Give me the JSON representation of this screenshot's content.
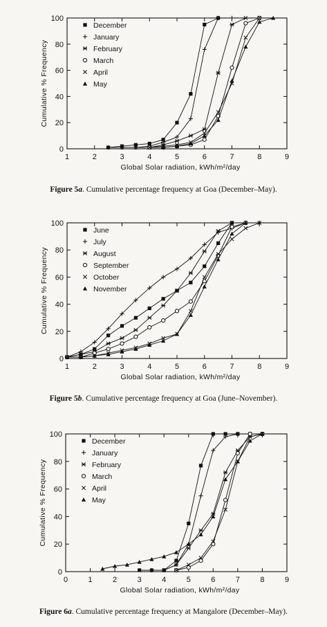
{
  "figures": [
    {
      "caption_prefix": "Figure 5",
      "caption_letter": "a",
      "caption_text": ". Cumulative percentage frequency at Goa (December–May).",
      "chart_data": {
        "type": "line",
        "title": "",
        "xlabel": "Global Solar radiation, kWh/m²/day",
        "ylabel": "Cumulative % Frequency",
        "xlim": [
          1,
          9
        ],
        "ylim": [
          0,
          100
        ],
        "xticks": [
          "1",
          "2",
          "3",
          "4",
          "5",
          "6",
          "7",
          "8",
          "9"
        ],
        "yticks": [
          "0",
          "20",
          "40",
          "60",
          "80",
          "100"
        ],
        "grid": false,
        "legend": "top-left",
        "series": [
          {
            "name": "December",
            "marker": "filled-square",
            "x": [
              2.5,
              3,
              3.5,
              4,
              4.5,
              5,
              5.5,
              6,
              6.5
            ],
            "y": [
              1,
              2,
              3,
              4,
              7,
              20,
              42,
              95,
              100
            ]
          },
          {
            "name": "January",
            "marker": "plus",
            "x": [
              2.5,
              3,
              3.5,
              4,
              4.5,
              5,
              5.5,
              6,
              6.5,
              7
            ],
            "y": [
              1,
              1,
              1,
              2,
              5,
              9,
              23,
              76,
              100,
              100
            ]
          },
          {
            "name": "February",
            "marker": "asterisk",
            "x": [
              3,
              3.5,
              4,
              4.5,
              5,
              5.5,
              6,
              6.5,
              7,
              7.5
            ],
            "y": [
              1,
              1,
              1,
              3,
              6,
              10,
              15,
              58,
              95,
              100
            ]
          },
          {
            "name": "March",
            "marker": "open-circle",
            "x": [
              4,
              4.5,
              5,
              5.5,
              6,
              6.5,
              7,
              7.5,
              8
            ],
            "y": [
              1,
              1,
              2,
              3,
              7,
              25,
              62,
              96,
              100
            ]
          },
          {
            "name": "April",
            "marker": "x",
            "x": [
              4,
              4.5,
              5,
              5.5,
              6,
              6.5,
              7,
              7.5,
              8
            ],
            "y": [
              1,
              2,
              3,
              5,
              12,
              28,
              50,
              85,
              100
            ]
          },
          {
            "name": "May",
            "marker": "triangle",
            "x": [
              4.5,
              5,
              5.5,
              6,
              6.5,
              7,
              7.5,
              8,
              8.5
            ],
            "y": [
              1,
              2,
              4,
              10,
              22,
              52,
              78,
              97,
              100
            ]
          }
        ]
      }
    },
    {
      "caption_prefix": "Figure 5",
      "caption_letter": "b",
      "caption_text": ". Cumulative percentage frequency at Goa (June–November).",
      "chart_data": {
        "type": "line",
        "title": "",
        "xlabel": "Global Solar radiation, kWh/m²/day",
        "ylabel": "Cumulative % Frequency",
        "xlim": [
          1,
          9
        ],
        "ylim": [
          0,
          100
        ],
        "xticks": [
          "1",
          "2",
          "3",
          "4",
          "5",
          "6",
          "7",
          "8",
          "9"
        ],
        "yticks": [
          "0",
          "20",
          "40",
          "60",
          "80",
          "100"
        ],
        "grid": false,
        "legend": "top-left",
        "series": [
          {
            "name": "June",
            "marker": "filled-square",
            "x": [
              1,
              1.5,
              2,
              2.5,
              3,
              3.5,
              4,
              4.5,
              5,
              5.5,
              6,
              6.5,
              7,
              7.5
            ],
            "y": [
              1,
              3,
              7,
              17,
              24,
              30,
              37,
              44,
              50,
              56,
              68,
              85,
              100,
              100
            ]
          },
          {
            "name": "July",
            "marker": "plus",
            "x": [
              1,
              1.5,
              2,
              2.5,
              3,
              3.5,
              4,
              4.5,
              5,
              5.5,
              6,
              6.5,
              7,
              7.5,
              8
            ],
            "y": [
              1,
              5,
              12,
              22,
              33,
              43,
              52,
              60,
              66,
              74,
              84,
              93,
              96,
              100,
              100
            ]
          },
          {
            "name": "August",
            "marker": "asterisk",
            "x": [
              1,
              1.5,
              2,
              2.5,
              3,
              3.5,
              4,
              4.5,
              5,
              5.5,
              6,
              6.5,
              7
            ],
            "y": [
              1,
              3,
              5,
              11,
              15,
              21,
              30,
              39,
              50,
              63,
              79,
              94,
              100
            ]
          },
          {
            "name": "September",
            "marker": "open-circle",
            "x": [
              1,
              1.5,
              2,
              2.5,
              3,
              3.5,
              4,
              4.5,
              5,
              5.5,
              6,
              6.5,
              7,
              7.5
            ],
            "y": [
              1,
              1,
              4,
              7,
              11,
              16,
              23,
              28,
              35,
              42,
              57,
              76,
              97,
              100
            ]
          },
          {
            "name": "October",
            "marker": "x",
            "x": [
              1,
              1.5,
              2,
              2.5,
              3,
              3.5,
              4,
              4.5,
              5,
              5.5,
              6,
              6.5,
              7,
              7.5,
              8
            ],
            "y": [
              1,
              1,
              2,
              4,
              6,
              8,
              11,
              15,
              18,
              35,
              60,
              77,
              88,
              96,
              100
            ]
          },
          {
            "name": "November",
            "marker": "triangle",
            "x": [
              1,
              1.5,
              2,
              2.5,
              3,
              3.5,
              4,
              4.5,
              5,
              5.5,
              6,
              6.5,
              7,
              7.5
            ],
            "y": [
              1,
              1,
              2,
              3,
              5,
              7,
              10,
              13,
              18,
              32,
              53,
              73,
              92,
              100
            ]
          }
        ]
      }
    },
    {
      "caption_prefix": "Figure 6",
      "caption_letter": "a",
      "caption_text": ". Cumulative percentage frequency at Mangalore (December–May).",
      "chart_data": {
        "type": "line",
        "title": "",
        "xlabel": "Global Solar radiation, kWh/m²/day",
        "ylabel": "Cumulative % Frequency",
        "xlim": [
          0,
          9
        ],
        "ylim": [
          0,
          100
        ],
        "xticks": [
          "0",
          "1",
          "2",
          "3",
          "4",
          "5",
          "6",
          "7",
          "8",
          "9"
        ],
        "yticks": [
          "0",
          "20",
          "40",
          "60",
          "80",
          "100"
        ],
        "grid": false,
        "legend": "top-left",
        "series": [
          {
            "name": "December",
            "marker": "filled-square",
            "x": [
              3,
              3.5,
              4,
              4.5,
              5,
              5.5,
              6,
              6.5,
              7,
              7.5
            ],
            "y": [
              1,
              1,
              1,
              8,
              35,
              77,
              100,
              100,
              100,
              100
            ]
          },
          {
            "name": "January",
            "marker": "plus",
            "x": [
              3.5,
              4,
              4.5,
              5,
              5.5,
              6,
              6.5,
              7,
              7.5
            ],
            "y": [
              1,
              1,
              5,
              20,
              55,
              88,
              98,
              100,
              100
            ]
          },
          {
            "name": "February",
            "marker": "asterisk",
            "x": [
              4,
              4.5,
              5,
              5.5,
              6,
              6.5,
              7,
              7.5,
              8
            ],
            "y": [
              1,
              5,
              17,
              30,
              42,
              72,
              88,
              98,
              100
            ]
          },
          {
            "name": "March",
            "marker": "open-circle",
            "x": [
              4.5,
              5,
              5.5,
              6,
              6.5,
              7,
              7.5,
              8
            ],
            "y": [
              1,
              3,
              8,
              20,
              52,
              86,
              100,
              100
            ]
          },
          {
            "name": "April",
            "marker": "x",
            "x": [
              4.5,
              5,
              5.5,
              6,
              6.5,
              7,
              7.5,
              8
            ],
            "y": [
              1,
              5,
              10,
              22,
              45,
              80,
              98,
              100
            ]
          },
          {
            "name": "May",
            "marker": "triangle",
            "x": [
              1.5,
              2,
              2.5,
              3,
              3.5,
              4,
              4.5,
              5,
              5.5,
              6,
              6.5,
              7,
              7.5,
              8
            ],
            "y": [
              2,
              4,
              5,
              7,
              9,
              11,
              14,
              20,
              27,
              40,
              67,
              80,
              95,
              100
            ]
          }
        ]
      }
    }
  ]
}
